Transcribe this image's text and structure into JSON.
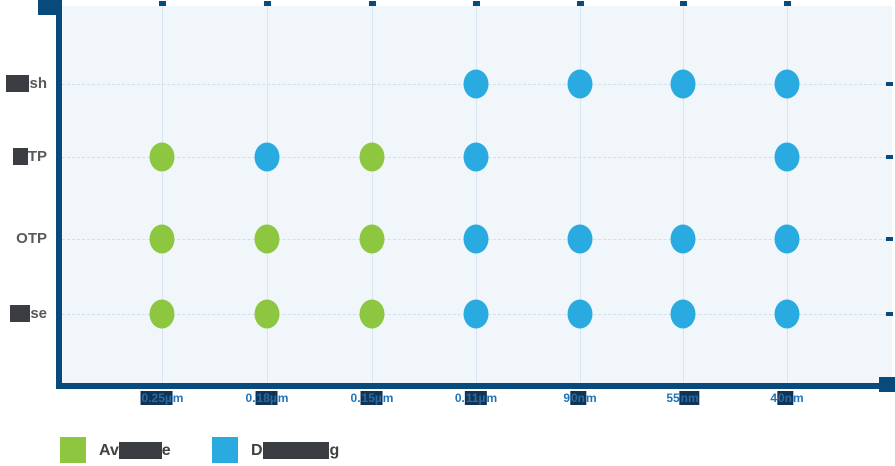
{
  "colors": {
    "available_green": "#8DC63F",
    "developing_blue": "#29ABE2",
    "axis_navy": "#084A7B",
    "x_label_blue": "#1C75BC",
    "y_label_gray": "#58595B",
    "legend_text_gray": "#414042",
    "plot_background": "#F1F6FB",
    "gridline": "#D9E5F1",
    "selection_dark": "#3A3D41",
    "selection_navy": "#0E3558"
  },
  "chart_data": {
    "type": "scatter",
    "title": "",
    "xlabel": "",
    "ylabel": "",
    "grid": true,
    "legend_position": "bottom-left",
    "x_categories": [
      "0.25µm",
      "0.18µm",
      "0.15µm",
      "0.11µm",
      "90nm",
      "55nm",
      "40nm"
    ],
    "y_categories": [
      "Flash",
      "MTP",
      "OTP",
      "Fuse"
    ],
    "series": [
      {
        "name": "Available",
        "color": "#8DC63F",
        "points": [
          {
            "x": "0.25µm",
            "y": "MTP"
          },
          {
            "x": "0.15µm",
            "y": "MTP"
          },
          {
            "x": "0.25µm",
            "y": "OTP"
          },
          {
            "x": "0.18µm",
            "y": "OTP"
          },
          {
            "x": "0.15µm",
            "y": "OTP"
          },
          {
            "x": "0.25µm",
            "y": "Fuse"
          },
          {
            "x": "0.18µm",
            "y": "Fuse"
          },
          {
            "x": "0.15µm",
            "y": "Fuse"
          }
        ]
      },
      {
        "name": "Developing",
        "color": "#29ABE2",
        "points": [
          {
            "x": "0.11µm",
            "y": "Flash"
          },
          {
            "x": "90nm",
            "y": "Flash"
          },
          {
            "x": "55nm",
            "y": "Flash"
          },
          {
            "x": "40nm",
            "y": "Flash"
          },
          {
            "x": "0.18µm",
            "y": "MTP"
          },
          {
            "x": "0.11µm",
            "y": "MTP"
          },
          {
            "x": "40nm",
            "y": "MTP"
          },
          {
            "x": "0.11µm",
            "y": "OTP"
          },
          {
            "x": "90nm",
            "y": "OTP"
          },
          {
            "x": "55nm",
            "y": "OTP"
          },
          {
            "x": "40nm",
            "y": "OTP"
          },
          {
            "x": "0.11µm",
            "y": "Fuse"
          },
          {
            "x": "90nm",
            "y": "Fuse"
          },
          {
            "x": "55nm",
            "y": "Fuse"
          },
          {
            "x": "40nm",
            "y": "Fuse"
          }
        ]
      }
    ]
  },
  "y_axis": {
    "labels": [
      {
        "full": "Flash",
        "hl": "Fla",
        "tail": "sh"
      },
      {
        "full": "MTP",
        "hl": "M",
        "tail": "TP"
      },
      {
        "full": "OTP",
        "hl": "",
        "tail": "OTP"
      },
      {
        "full": "Fuse",
        "hl": "Fu",
        "tail": "se"
      }
    ]
  },
  "x_axis": {
    "labels": [
      {
        "full": "0.25µm",
        "head": "",
        "hl": "0.25µ",
        "tail": "m"
      },
      {
        "full": "0.18µm",
        "head": "0.",
        "hl": "18µ",
        "tail": "m"
      },
      {
        "full": "0.15µm",
        "head": "0.",
        "hl": "15µ",
        "tail": "m"
      },
      {
        "full": "0.11µm",
        "head": "0.",
        "hl": "11µ",
        "tail": "m"
      },
      {
        "full": "90nm",
        "head": "9",
        "hl": "0n",
        "tail": "m"
      },
      {
        "full": "55nm",
        "head": "55",
        "hl": "nm",
        "tail": ""
      },
      {
        "full": "40nm",
        "head": "4",
        "hl": "0n",
        "tail": "m"
      }
    ]
  },
  "legend": {
    "items": [
      {
        "label": "Available",
        "head": "Av",
        "hl": "ailabl",
        "tail": "e",
        "color": "#8DC63F"
      },
      {
        "label": "Developing",
        "head": "D",
        "hl": "evelopin",
        "tail": "g",
        "color": "#29ABE2"
      }
    ]
  }
}
